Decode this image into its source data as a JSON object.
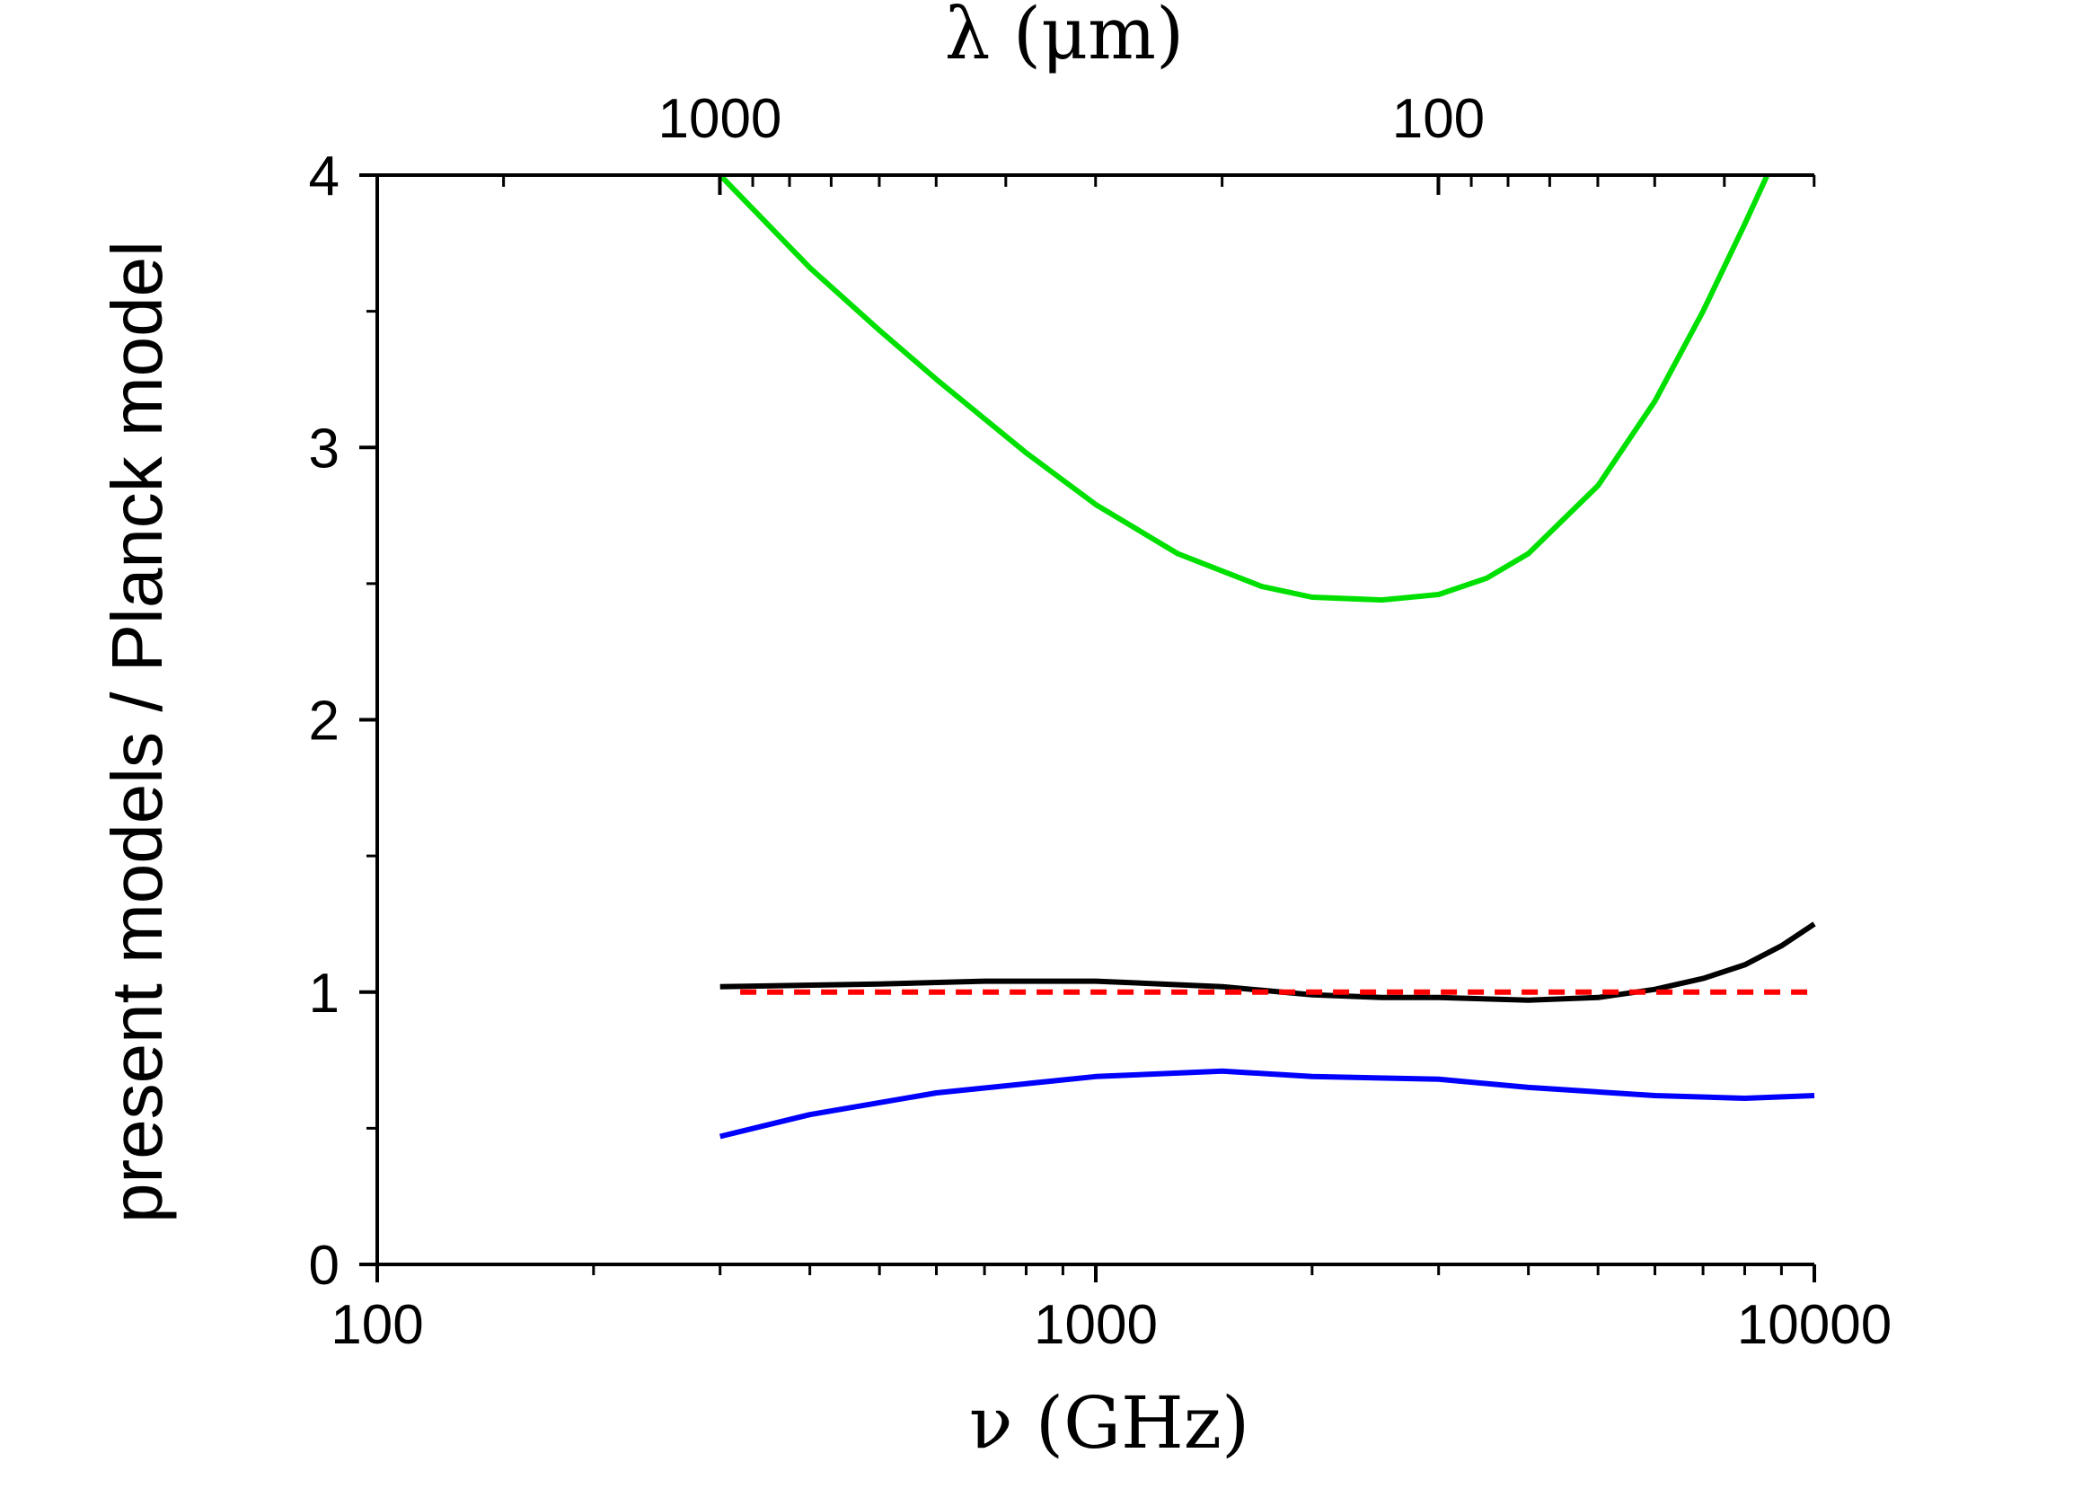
{
  "chart_data": {
    "type": "line",
    "xscale": "log",
    "xlim": [
      100,
      10000
    ],
    "ylim": [
      0,
      4
    ],
    "xlabel": "ν (GHz)",
    "ylabel": "present models / Planck model",
    "top_axis_label": "λ (μm)",
    "x_ticks": [
      {
        "value": 100,
        "label": "100"
      },
      {
        "value": 1000,
        "label": "1000"
      },
      {
        "value": 10000,
        "label": "10000"
      }
    ],
    "y_ticks": [
      {
        "value": 0,
        "label": "0"
      },
      {
        "value": 1,
        "label": "1"
      },
      {
        "value": 2,
        "label": "2"
      },
      {
        "value": 3,
        "label": "3"
      },
      {
        "value": 4,
        "label": "4"
      }
    ],
    "top_ticks": [
      {
        "wavelength_um": 1000,
        "label": "1000"
      },
      {
        "wavelength_um": 100,
        "label": "100"
      }
    ],
    "series": [
      {
        "name": "green model",
        "color": "#00e000",
        "style": "solid",
        "x": [
          300,
          400,
          500,
          600,
          800,
          1000,
          1300,
          1700,
          2000,
          2500,
          3000,
          3500,
          4000,
          5000,
          6000,
          7000,
          8000,
          8600
        ],
        "y": [
          4.0,
          3.66,
          3.43,
          3.25,
          2.98,
          2.79,
          2.61,
          2.49,
          2.45,
          2.44,
          2.46,
          2.52,
          2.61,
          2.86,
          3.17,
          3.5,
          3.82,
          4.0
        ]
      },
      {
        "name": "black model",
        "color": "#000000",
        "style": "solid",
        "x": [
          300,
          500,
          700,
          1000,
          1500,
          2000,
          2500,
          3000,
          4000,
          5000,
          6000,
          7000,
          8000,
          9000,
          10000
        ],
        "y": [
          1.02,
          1.03,
          1.04,
          1.04,
          1.02,
          0.99,
          0.98,
          0.98,
          0.97,
          0.98,
          1.01,
          1.05,
          1.1,
          1.17,
          1.25
        ]
      },
      {
        "name": "Planck model reference",
        "color": "#ff0000",
        "style": "dashed",
        "x": [
          320,
          10000
        ],
        "y": [
          1.0,
          1.0
        ]
      },
      {
        "name": "blue model",
        "color": "#0000ff",
        "style": "solid",
        "x": [
          300,
          400,
          600,
          1000,
          1500,
          2000,
          3000,
          4000,
          6000,
          8000,
          10000
        ],
        "y": [
          0.47,
          0.55,
          0.63,
          0.69,
          0.71,
          0.69,
          0.68,
          0.65,
          0.62,
          0.61,
          0.62
        ]
      }
    ]
  }
}
